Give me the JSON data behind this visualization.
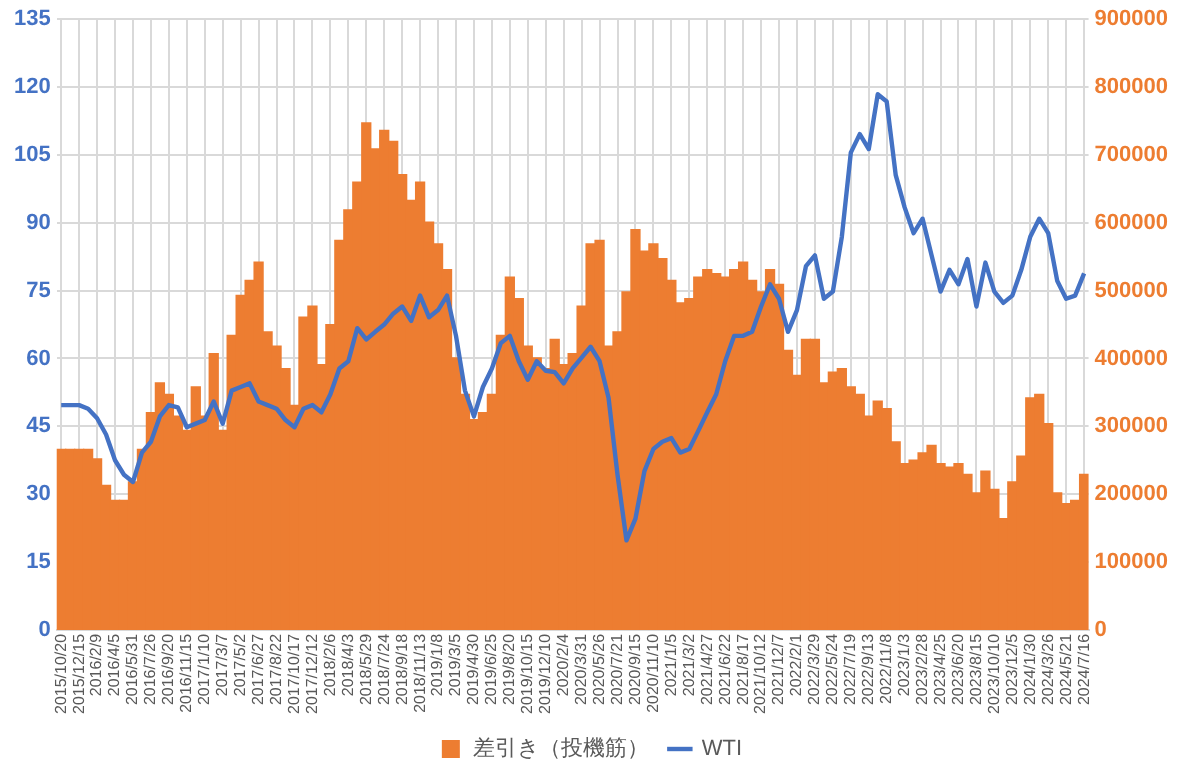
{
  "chart_data": {
    "type": "bar",
    "categories": [
      "2015/10/20",
      null,
      "2015/12/15",
      null,
      "2016/2/9",
      null,
      "2016/4/5",
      null,
      "2016/5/31",
      null,
      "2016/7/26",
      null,
      "2016/9/20",
      null,
      "2016/11/15",
      null,
      "2017/1/10",
      null,
      "2017/3/7",
      null,
      "2017/5/2",
      null,
      "2017/6/27",
      null,
      "2017/8/22",
      null,
      "2017/10/17",
      null,
      "2017/12/12",
      null,
      "2018/2/6",
      null,
      "2018/4/3",
      null,
      "2018/5/29",
      null,
      "2018/7/24",
      null,
      "2018/9/18",
      null,
      "2018/11/13",
      null,
      "2019/1/8",
      null,
      "2019/3/5",
      null,
      "2019/4/30",
      null,
      "2019/6/25",
      null,
      "2019/8/20",
      null,
      "2019/10/15",
      null,
      "2019/12/10",
      null,
      "2020/2/4",
      null,
      "2020/3/31",
      null,
      "2020/5/26",
      null,
      "2020/7/21",
      null,
      "2020/9/15",
      null,
      "2020/11/10",
      null,
      "2021/1/5",
      null,
      "2021/3/2",
      null,
      "2021/4/27",
      null,
      "2021/6/22",
      null,
      "2021/8/17",
      null,
      "2021/10/12",
      null,
      "2021/12/7",
      null,
      "2022/2/1",
      null,
      "2022/3/29",
      null,
      "2022/5/24",
      null,
      "2022/7/19",
      null,
      "2022/9/13",
      null,
      "2022/11/8",
      null,
      "2023/1/3",
      null,
      "2023/2/28",
      null,
      "2023/4/25",
      null,
      "2023/6/20",
      null,
      "2023/8/15",
      null,
      "2023/10/10",
      null,
      "2023/12/5",
      null,
      "2024/1/30",
      null,
      "2024/3/26",
      null,
      "2024/5/21",
      null,
      "2024/7/16"
    ],
    "series": [
      {
        "name": "差引き（投機筋）",
        "axis": "y2",
        "color": "#ed7d31",
        "values": [
          266000,
          266000,
          266000,
          266000,
          252000,
          213000,
          191000,
          191000,
          218000,
          266000,
          320000,
          364000,
          347000,
          315000,
          294000,
          358000,
          315000,
          407000,
          294000,
          434000,
          493000,
          515000,
          542000,
          439000,
          418000,
          385000,
          331000,
          461000,
          477000,
          391000,
          450000,
          574000,
          619000,
          660000,
          747000,
          709000,
          736000,
          720000,
          671000,
          633000,
          660000,
          601000,
          569000,
          531000,
          401000,
          347000,
          310000,
          320000,
          347000,
          434000,
          520000,
          488000,
          418000,
          401000,
          385000,
          428000,
          391000,
          407000,
          477000,
          569000,
          574000,
          418000,
          439000,
          498000,
          590000,
          558000,
          569000,
          547000,
          515000,
          482000,
          488000,
          520000,
          531000,
          525000,
          520000,
          531000,
          542000,
          515000,
          498000,
          531000,
          509000,
          412000,
          375000,
          428000,
          428000,
          364000,
          380000,
          385000,
          358000,
          347000,
          315000,
          337000,
          326000,
          277000,
          245000,
          250000,
          261000,
          272000,
          245000,
          240000,
          245000,
          229000,
          202000,
          234000,
          207000,
          164000,
          218000,
          256000,
          342000,
          347000,
          304000,
          202000,
          186000,
          191000,
          229000
        ]
      },
      {
        "name": "WTI",
        "type": "line",
        "color": "#4472c4",
        "values": [
          49.7,
          49.7,
          49.7,
          48.9,
          46.8,
          43.2,
          37.5,
          34.3,
          32.7,
          39.2,
          41.6,
          47.2,
          49.7,
          49.2,
          44.8,
          45.6,
          46.4,
          50.5,
          45.6,
          52.9,
          53.7,
          54.5,
          50.5,
          49.7,
          48.9,
          46.4,
          44.8,
          48.9,
          49.7,
          48.1,
          52.1,
          57.8,
          59.4,
          66.7,
          64.2,
          65.9,
          67.5,
          69.9,
          71.5,
          68.3,
          73.9,
          69.1,
          70.7,
          73.9,
          65.0,
          52.9,
          47.2,
          53.7,
          57.8,
          63.4,
          65.0,
          59.4,
          55.3,
          59.4,
          57.3,
          57.0,
          54.5,
          57.8,
          60.2,
          62.6,
          59.4,
          51.3,
          34.3,
          19.8,
          24.6,
          35.1,
          40.0,
          41.6,
          42.4,
          39.2,
          40.0,
          44.0,
          48.1,
          52.1,
          59.4,
          65.0,
          65.0,
          65.9,
          71.5,
          76.4,
          73.2,
          65.9,
          70.7,
          80.4,
          82.8,
          73.2,
          74.8,
          86.9,
          105.5,
          109.6,
          106.3,
          118.4,
          116.8,
          100.6,
          93.4,
          87.7,
          90.9,
          82.8,
          74.8,
          79.6,
          76.4,
          82.0,
          71.5,
          81.2,
          74.8,
          72.3,
          73.9,
          79.6,
          86.9,
          90.9,
          87.7,
          77.2,
          73.2,
          73.9,
          78.8
        ]
      }
    ],
    "ylim": [
      0,
      135
    ],
    "yticks": [
      0,
      15,
      30,
      45,
      60,
      75,
      90,
      105,
      120,
      135
    ],
    "y2lim": [
      0,
      900000
    ],
    "y2ticks": [
      0,
      100000,
      200000,
      300000,
      400000,
      500000,
      600000,
      700000,
      800000,
      900000
    ],
    "grid": true,
    "legend": "bottom",
    "marker": "none"
  }
}
